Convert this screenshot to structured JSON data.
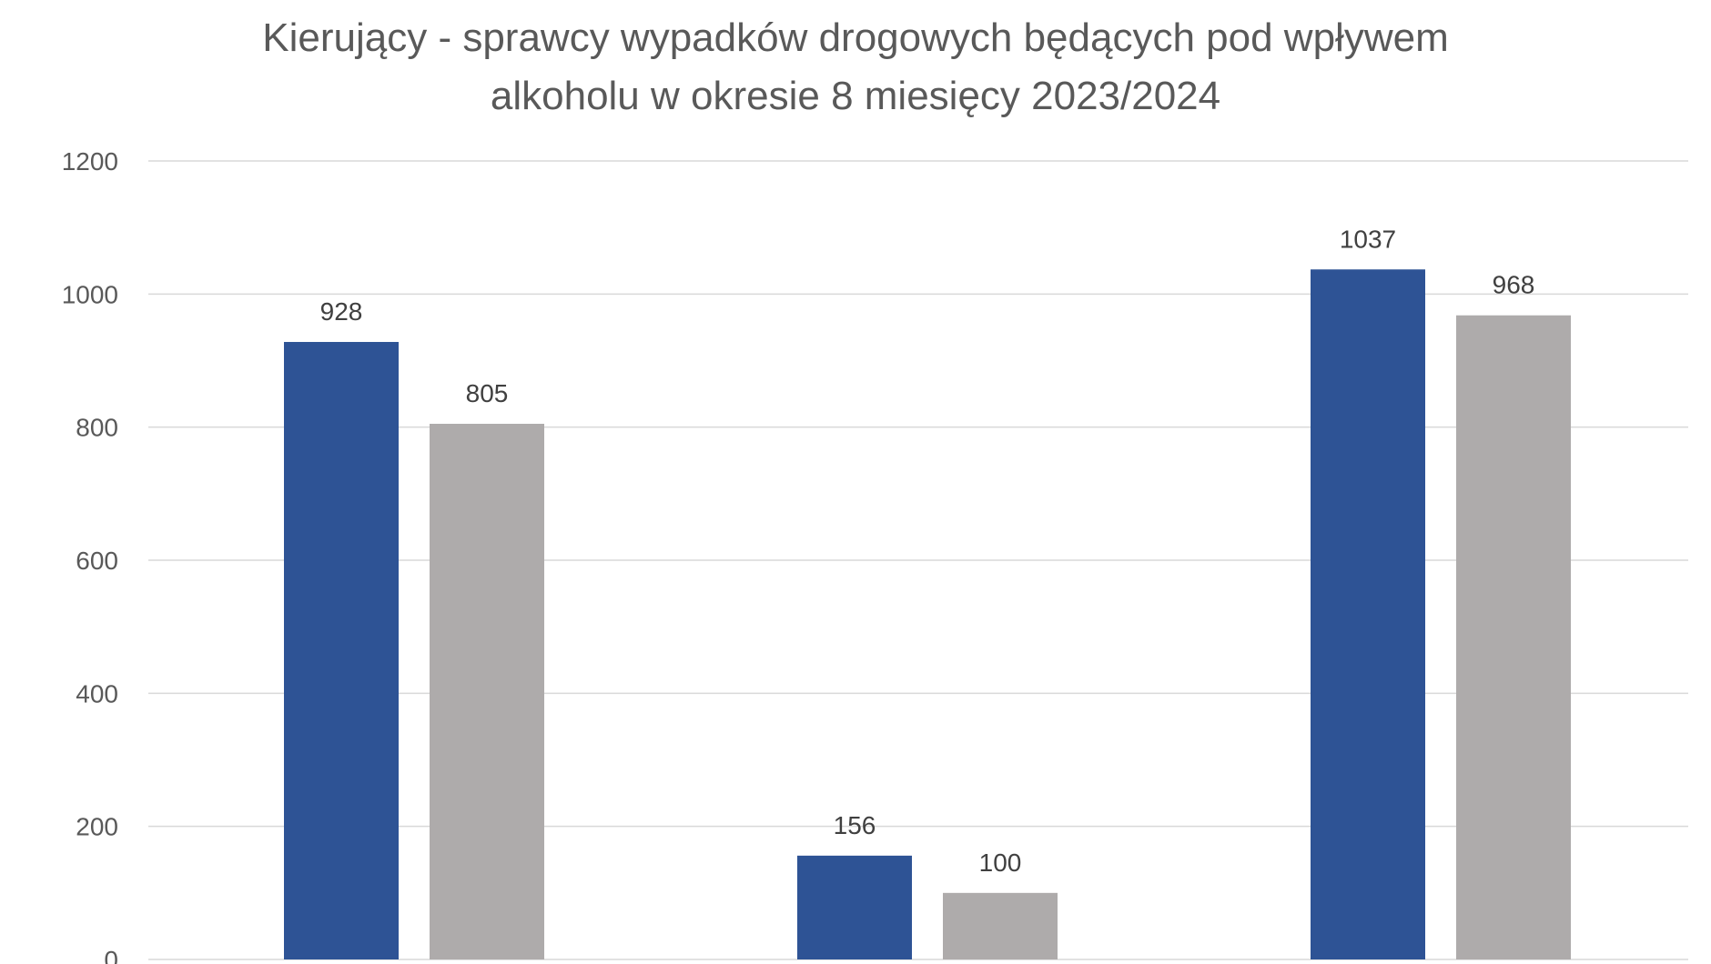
{
  "chart_data": {
    "type": "bar",
    "title_lines": [
      "Kierujący - sprawcy wypadków drogowych będących pod wpływem",
      "alkoholu w okresie 8 miesięcy 2023/2024"
    ],
    "categories": [
      "",
      "",
      ""
    ],
    "series": [
      {
        "values": [
          928,
          156,
          1037
        ],
        "color": "#2e5395"
      },
      {
        "values": [
          805,
          100,
          968
        ],
        "color": "#aeabab"
      }
    ],
    "y_ticks": [
      "0",
      "200",
      "400",
      "600",
      "800",
      "1000",
      "1200"
    ],
    "ylim": [
      0,
      1200
    ],
    "grid": true,
    "legend": "none"
  }
}
